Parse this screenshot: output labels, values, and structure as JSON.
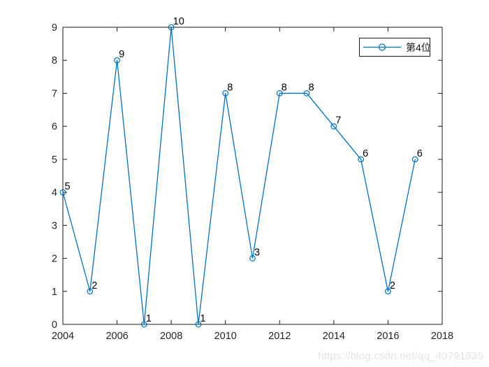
{
  "chart_data": {
    "type": "line",
    "x": [
      2004,
      2005,
      2006,
      2007,
      2008,
      2009,
      2010,
      2011,
      2012,
      2013,
      2014,
      2015,
      2016,
      2017
    ],
    "series": [
      {
        "name": "第4位",
        "values": [
          4,
          1,
          8,
          0,
          9,
          0,
          7,
          2,
          7,
          7,
          6,
          5,
          1,
          5
        ],
        "point_labels": [
          "5",
          "2",
          "9",
          "1",
          "10",
          "1",
          "8",
          "3",
          "8",
          "8",
          "7",
          "6",
          "2",
          "6"
        ],
        "marker": "circle"
      }
    ],
    "title": "",
    "xlabel": "",
    "ylabel": "",
    "xlim": [
      2004,
      2018
    ],
    "ylim": [
      0,
      9
    ],
    "x_ticks": [
      2004,
      2006,
      2008,
      2010,
      2012,
      2014,
      2016,
      2018
    ],
    "y_ticks": [
      0,
      1,
      2,
      3,
      4,
      5,
      6,
      7,
      8,
      9
    ],
    "grid": false,
    "box": true,
    "legend_position": "top-right"
  },
  "legend": {
    "label": "第4位"
  },
  "watermark": {
    "text": "https://blog.csdn.net/qq_40791635"
  },
  "colors": {
    "line": "#0072BD",
    "axis": "#1a1a1a",
    "tick_label": "#262626",
    "point_label": "#000000",
    "watermark": "#e4e4e4",
    "background": "#ffffff"
  }
}
